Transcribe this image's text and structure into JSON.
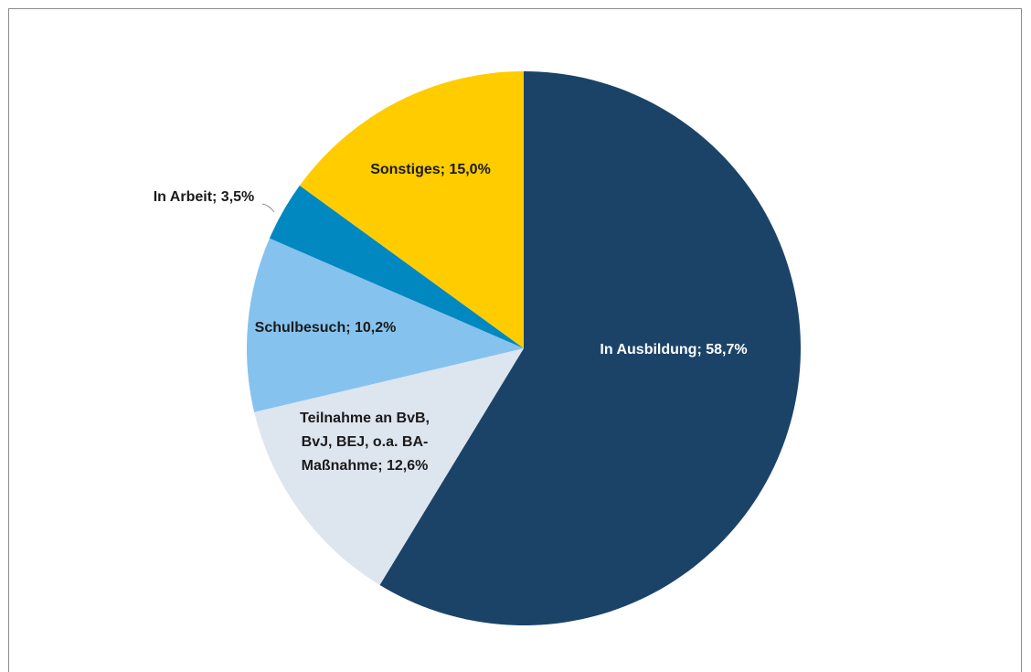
{
  "chart_data": {
    "type": "pie",
    "values": [
      58.7,
      12.6,
      10.2,
      3.5,
      15.0
    ],
    "value_labels": [
      "In Ausbildung; 58,7%",
      [
        "Teilnahme an BvB,",
        "BvJ, BEJ, o.a. BA-",
        "Maßnahme; 12,6%"
      ],
      "Schulbesuch; 10,2%",
      "In Arbeit; 3,5%",
      "Sonstiges; 15,0%"
    ],
    "colors": [
      "#1b4368",
      "#dde5ef",
      "#86c2ee",
      "#0288c0",
      "#ffcc00"
    ],
    "start_angle": 0,
    "direction": "clockwise"
  }
}
